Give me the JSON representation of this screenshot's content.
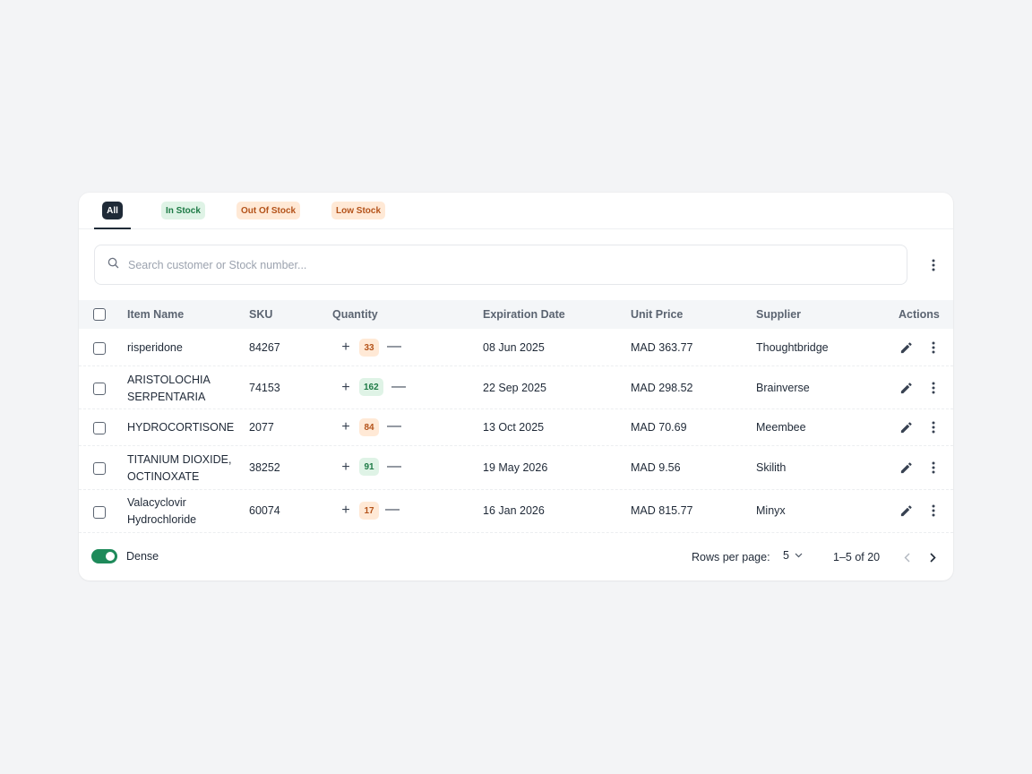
{
  "tabs": [
    {
      "label": "All",
      "active": true,
      "color": "#1f2a37"
    },
    {
      "label": "In Stock",
      "active": false,
      "color": "#1d7a45"
    },
    {
      "label": "Out Of Stock",
      "active": false,
      "color": "#b4531a"
    },
    {
      "label": "Low Stock",
      "active": false,
      "color": "#b4531a"
    }
  ],
  "search": {
    "placeholder": "Search customer or Stock number...",
    "value": "",
    "icon": "search-icon"
  },
  "table": {
    "headers": {
      "item_name": "Item Name",
      "sku": "SKU",
      "quantity": "Quantity",
      "expiration": "Expiration Date",
      "unit_price": "Unit Price",
      "supplier": "Supplier",
      "actions": "Actions"
    },
    "rows": [
      {
        "name_line1": "risperidone",
        "name_line2": "",
        "sku": "84267",
        "qty": "33",
        "qty_status": "orange",
        "expiration": "08 Jun 2025",
        "price": "MAD 363.77",
        "supplier": "Thoughtbridge"
      },
      {
        "name_line1": "ARISTOLOCHIA",
        "name_line2": "SERPENTARIA",
        "sku": "74153",
        "qty": "162",
        "qty_status": "green",
        "expiration": "22 Sep 2025",
        "price": "MAD 298.52",
        "supplier": "Brainverse"
      },
      {
        "name_line1": "HYDROCORTISONE",
        "name_line2": "",
        "sku": "2077",
        "qty": "84",
        "qty_status": "orange",
        "expiration": "13 Oct 2025",
        "price": "MAD 70.69",
        "supplier": "Meembee"
      },
      {
        "name_line1": "TITANIUM DIOXIDE,",
        "name_line2": "OCTINOXATE",
        "sku": "38252",
        "qty": "91",
        "qty_status": "green",
        "expiration": "19 May 2026",
        "price": "MAD 9.56",
        "supplier": "Skilith"
      },
      {
        "name_line1": "Valacyclovir",
        "name_line2": "Hydrochloride",
        "sku": "60074",
        "qty": "17",
        "qty_status": "orange",
        "expiration": "16 Jan 2026",
        "price": "MAD 815.77",
        "supplier": "Minyx"
      }
    ]
  },
  "footer": {
    "dense_label": "Dense",
    "dense_on": true,
    "rows_per_page_label": "Rows per page:",
    "rows_per_page_value": "5",
    "range": "1–5 of 20"
  },
  "colors": {
    "accent_dark": "#1f2a37",
    "green_badge_bg": "#dff3e6",
    "green_badge_text": "#1d7a45",
    "orange_badge_bg": "#ffe9d6",
    "orange_badge_text": "#b4531a",
    "toggle_on": "#1e8a5a"
  }
}
